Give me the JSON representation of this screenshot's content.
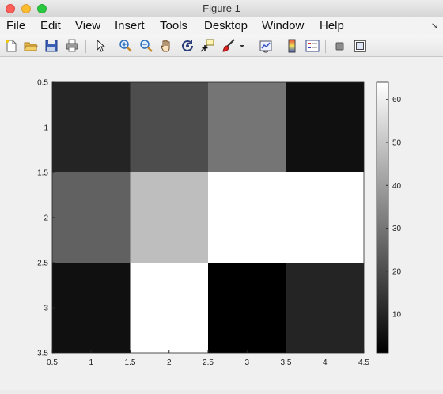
{
  "window": {
    "title": "Figure 1"
  },
  "menu": [
    "File",
    "Edit",
    "View",
    "Insert",
    "Tools",
    "Desktop",
    "Window",
    "Help"
  ],
  "toolbar": {
    "icons": [
      "new-figure-icon",
      "open-file-icon",
      "save-icon",
      "print-icon",
      "pointer-icon",
      "zoom-in-icon",
      "zoom-out-icon",
      "pan-hand-icon",
      "rotate-3d-icon",
      "data-cursor-icon",
      "brush-icon",
      "brush-dropdown-icon",
      "link-plot-icon",
      "colorbar-icon",
      "legend-icon",
      "hide-plot-tools-icon",
      "show-plot-tools-icon"
    ]
  },
  "chart_data": {
    "type": "heatmap",
    "colormap": "gray",
    "rows": [
      1,
      2,
      3
    ],
    "cols": [
      1,
      2,
      3,
      4
    ],
    "values": [
      [
        10,
        20,
        30,
        5
      ],
      [
        25,
        48,
        64,
        64
      ],
      [
        5,
        64,
        1,
        10
      ]
    ],
    "xlim": [
      0.5,
      4.5
    ],
    "ylim": [
      0.5,
      3.5
    ],
    "xticks": [
      "0.5",
      "1",
      "1.5",
      "2",
      "2.5",
      "3",
      "3.5",
      "4",
      "4.5"
    ],
    "yticks": [
      "0.5",
      "1",
      "1.5",
      "2",
      "2.5",
      "3",
      "3.5"
    ],
    "colorbar": {
      "range": [
        1,
        64
      ],
      "ticks": [
        "10",
        "20",
        "30",
        "40",
        "50",
        "60"
      ]
    }
  }
}
